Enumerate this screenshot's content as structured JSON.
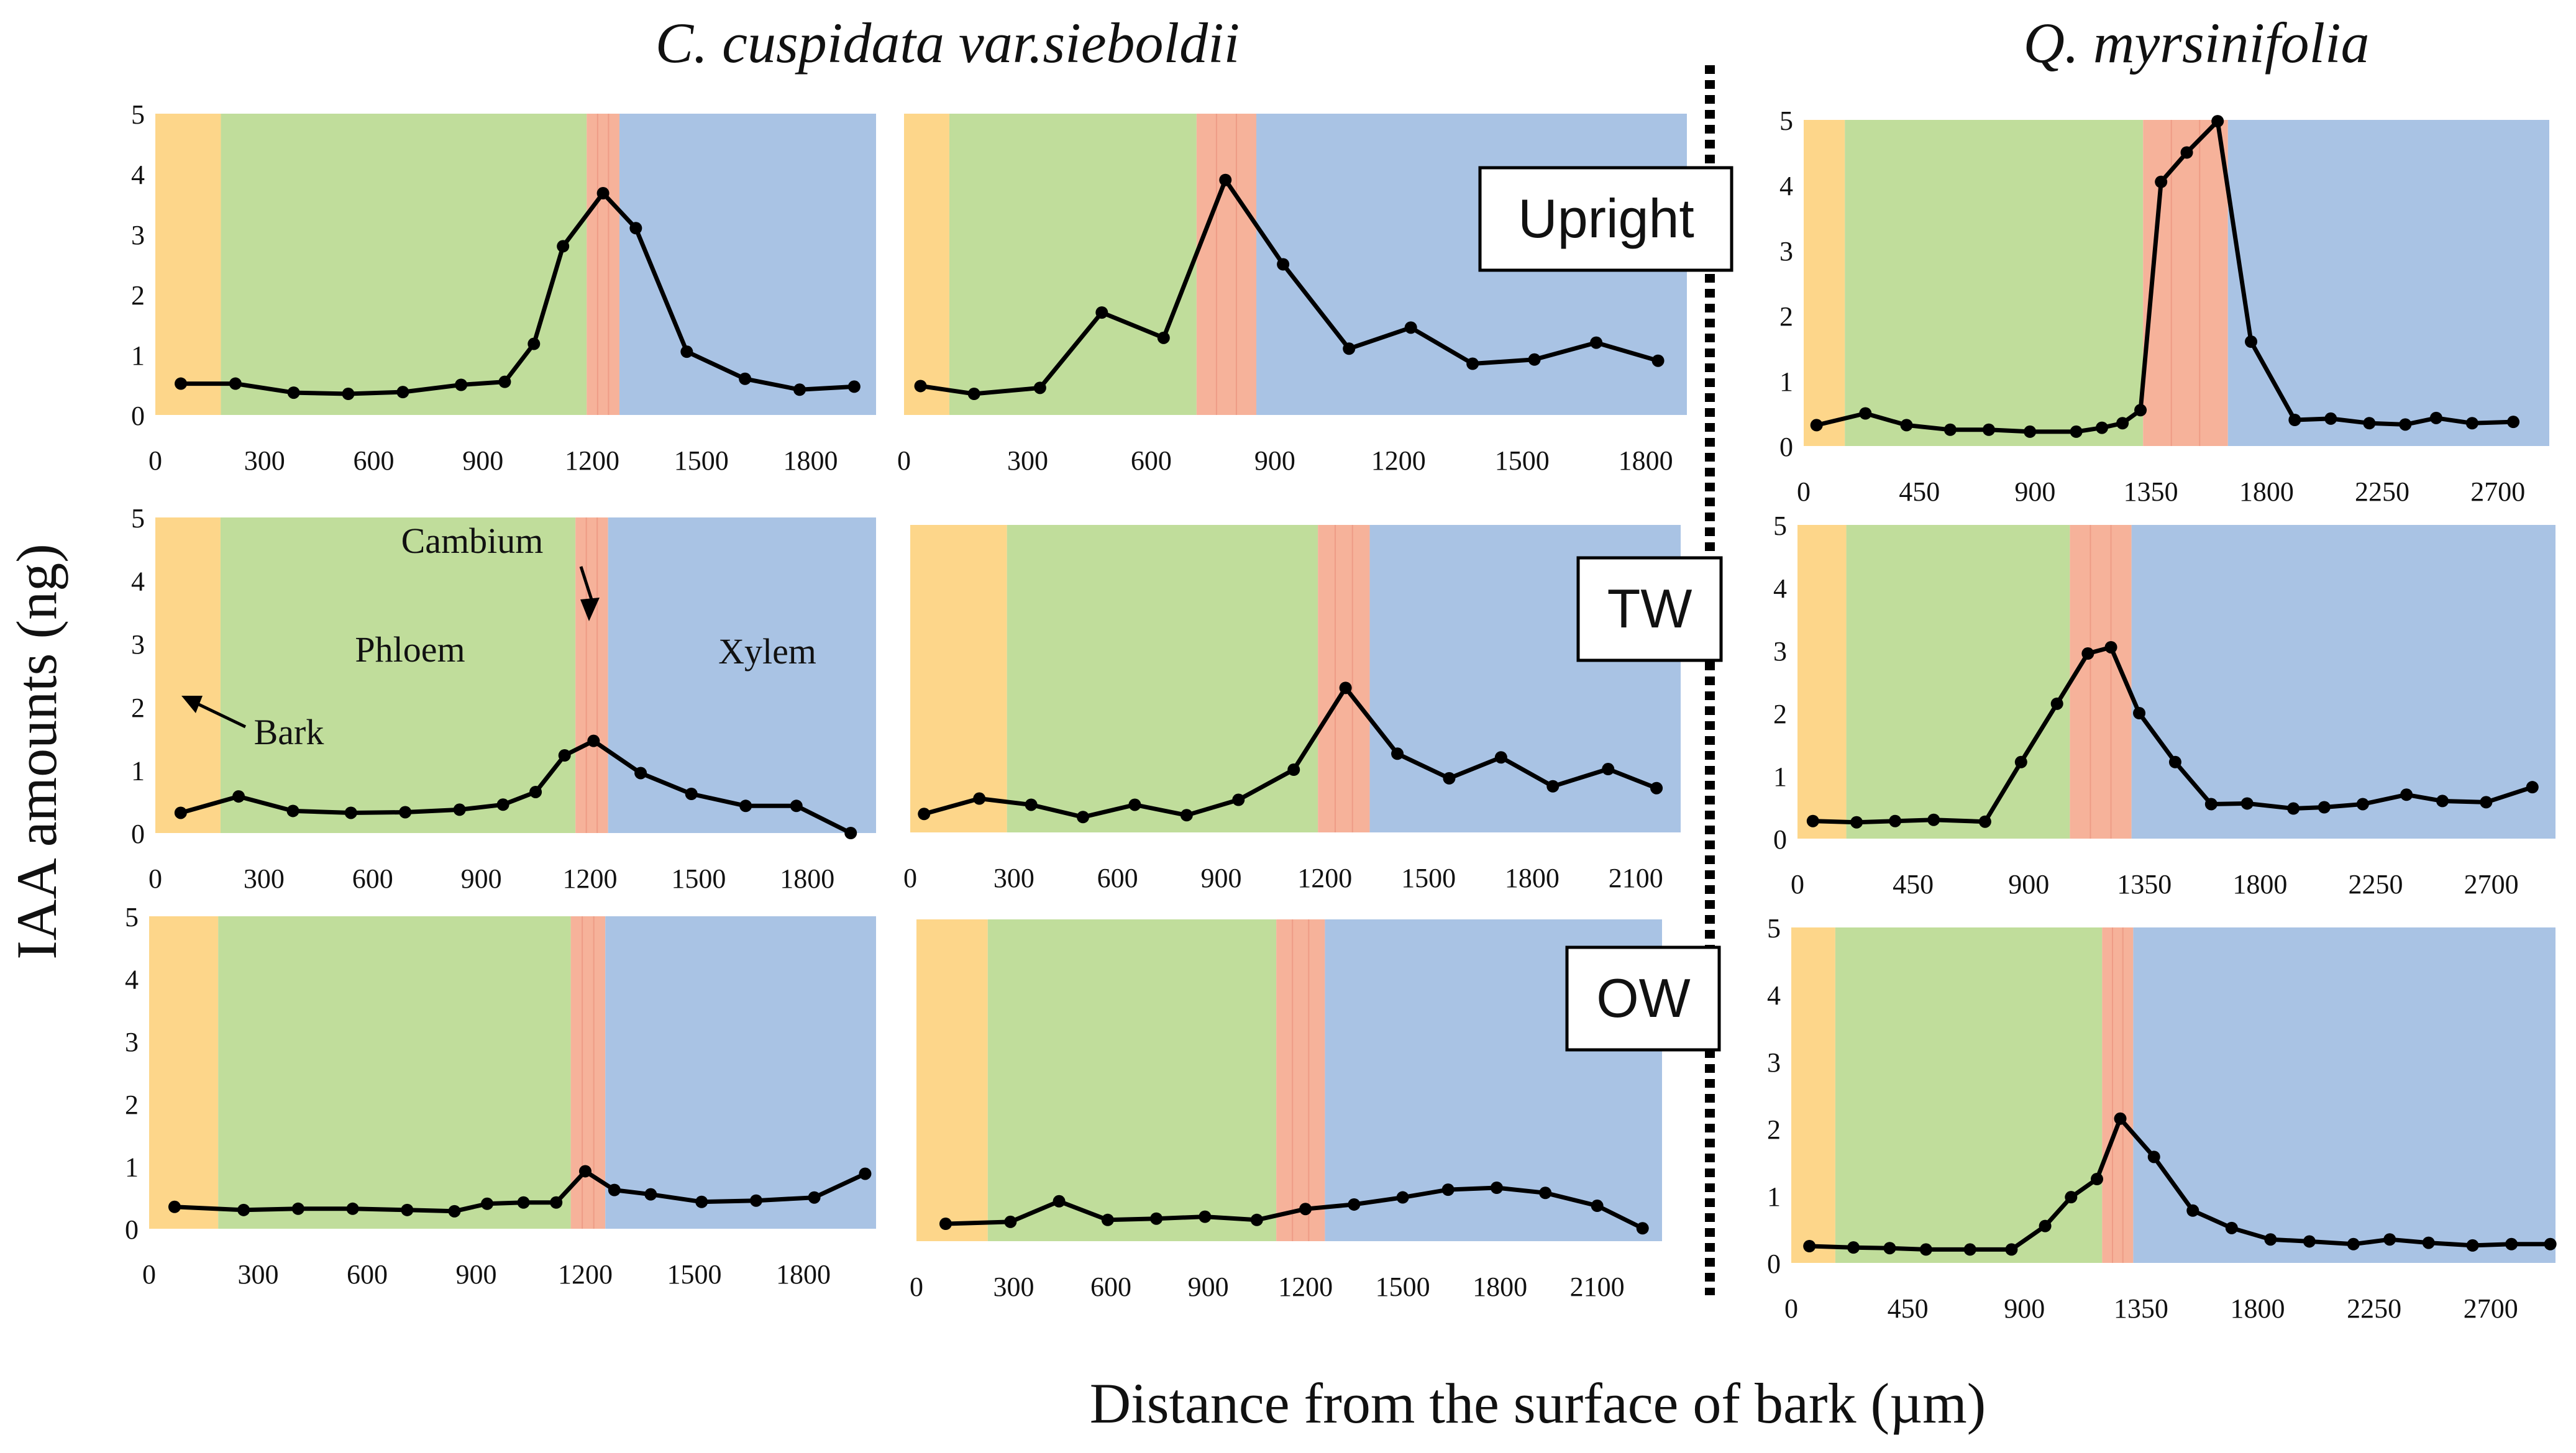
{
  "colors": {
    "bark": "#FDD68A",
    "phloem": "#C0DD9B",
    "cambium": "#F6B29A",
    "xylem": "#A9C3E4",
    "line": "#000000",
    "divider": "#000000"
  },
  "titles": {
    "species_left": "C. cuspidata var.sieboldii",
    "species_right": "Q. myrsinifolia",
    "ylabel": "IAA amounts (ng)",
    "xlabel": "Distance from the surface of bark (µm)"
  },
  "conditions": {
    "upright": "Upright",
    "tw": "TW",
    "ow": "OW"
  },
  "annotations": {
    "bark": "Bark",
    "phloem": "Phloem",
    "cambium": "Cambium",
    "xylem": "Xylem"
  },
  "chart_data": [
    {
      "type": "line",
      "species": "C. cuspidata var.sieboldii",
      "condition": "Upright",
      "xlim": [
        0,
        1980
      ],
      "ylim": [
        0,
        5
      ],
      "xticks": [
        0,
        300,
        600,
        900,
        1200,
        1500,
        1800
      ],
      "yticks": [
        0,
        1,
        2,
        3,
        4,
        5
      ],
      "tissues": {
        "bark": [
          0,
          180
        ],
        "phloem": [
          180,
          1185
        ],
        "cambium": [
          1185,
          1275
        ],
        "xylem": [
          1275,
          1980
        ]
      },
      "x": [
        70,
        220,
        380,
        530,
        680,
        840,
        960,
        1040,
        1120,
        1230,
        1320,
        1460,
        1620,
        1770,
        1920
      ],
      "y": [
        0.52,
        0.52,
        0.37,
        0.35,
        0.38,
        0.5,
        0.55,
        1.18,
        2.8,
        3.68,
        3.1,
        1.05,
        0.6,
        0.42,
        0.47
      ]
    },
    {
      "type": "line",
      "species": "C. cuspidata var.sieboldii",
      "condition": "Upright",
      "xlim": [
        0,
        1900
      ],
      "ylim": [
        0,
        5
      ],
      "xticks": [
        0,
        300,
        600,
        900,
        1200,
        1500,
        1800
      ],
      "yticks": [],
      "tissues": {
        "bark": [
          0,
          110
        ],
        "phloem": [
          110,
          710
        ],
        "cambium": [
          710,
          855
        ],
        "xylem": [
          855,
          1900
        ]
      },
      "x": [
        40,
        170,
        330,
        480,
        630,
        780,
        920,
        1080,
        1230,
        1380,
        1530,
        1680,
        1830
      ],
      "y": [
        0.48,
        0.35,
        0.45,
        1.7,
        1.28,
        3.9,
        2.5,
        1.1,
        1.45,
        0.85,
        0.92,
        1.2,
        0.9
      ]
    },
    {
      "type": "line",
      "species": "Q. myrsinifolia",
      "condition": "Upright",
      "xlim": [
        0,
        2900
      ],
      "ylim": [
        0,
        5
      ],
      "xticks": [
        0,
        450,
        900,
        1350,
        1800,
        2250,
        2700
      ],
      "yticks": [
        0,
        1,
        2,
        3,
        4,
        5
      ],
      "tissues": {
        "bark": [
          0,
          160
        ],
        "phloem": [
          160,
          1320
        ],
        "cambium": [
          1320,
          1650
        ],
        "xylem": [
          1650,
          2900
        ]
      },
      "x": [
        50,
        240,
        400,
        570,
        720,
        880,
        1060,
        1160,
        1240,
        1310,
        1390,
        1490,
        1610,
        1740,
        1910,
        2050,
        2200,
        2340,
        2460,
        2600,
        2760
      ],
      "y": [
        0.32,
        0.5,
        0.32,
        0.25,
        0.25,
        0.22,
        0.22,
        0.28,
        0.35,
        0.55,
        4.05,
        4.5,
        4.98,
        1.6,
        0.4,
        0.42,
        0.35,
        0.33,
        0.43,
        0.35,
        0.37
      ]
    },
    {
      "type": "line",
      "species": "C. cuspidata var.sieboldii",
      "condition": "TW",
      "xlim": [
        0,
        1990
      ],
      "ylim": [
        0,
        5
      ],
      "xticks": [
        0,
        300,
        600,
        900,
        1200,
        1500,
        1800
      ],
      "yticks": [
        0,
        1,
        2,
        3,
        4,
        5
      ],
      "tissues": {
        "bark": [
          0,
          180
        ],
        "phloem": [
          180,
          1160
        ],
        "cambium": [
          1160,
          1250
        ],
        "xylem": [
          1250,
          1990
        ]
      },
      "x": [
        70,
        230,
        380,
        540,
        690,
        840,
        960,
        1050,
        1130,
        1210,
        1340,
        1480,
        1630,
        1770,
        1920
      ],
      "y": [
        0.32,
        0.58,
        0.35,
        0.32,
        0.33,
        0.37,
        0.45,
        0.65,
        1.23,
        1.46,
        0.95,
        0.62,
        0.43,
        0.43,
        0.0
      ]
    },
    {
      "type": "line",
      "species": "C. cuspidata var.sieboldii",
      "condition": "TW",
      "xlim": [
        0,
        2230
      ],
      "ylim": [
        0,
        5
      ],
      "xticks": [
        0,
        300,
        600,
        900,
        1200,
        1500,
        1800,
        2100
      ],
      "yticks": [],
      "tissues": {
        "bark": [
          0,
          280
        ],
        "phloem": [
          280,
          1180
        ],
        "cambium": [
          1180,
          1330
        ],
        "xylem": [
          1330,
          2230
        ]
      },
      "x": [
        40,
        200,
        350,
        500,
        650,
        800,
        950,
        1110,
        1260,
        1410,
        1560,
        1710,
        1860,
        2020,
        2160
      ],
      "y": [
        0.3,
        0.55,
        0.45,
        0.25,
        0.45,
        0.28,
        0.53,
        1.02,
        2.35,
        1.28,
        0.88,
        1.22,
        0.75,
        1.03,
        0.72
      ]
    },
    {
      "type": "line",
      "species": "Q. myrsinifolia",
      "condition": "TW",
      "xlim": [
        0,
        2950
      ],
      "ylim": [
        0,
        5
      ],
      "xticks": [
        0,
        450,
        900,
        1350,
        1800,
        2250,
        2700
      ],
      "yticks": [
        0,
        1,
        2,
        3,
        4,
        5
      ],
      "tissues": {
        "bark": [
          0,
          190
        ],
        "phloem": [
          190,
          1060
        ],
        "cambium": [
          1060,
          1300
        ],
        "xylem": [
          1300,
          2950
        ]
      },
      "x": [
        60,
        230,
        380,
        530,
        730,
        870,
        1010,
        1130,
        1220,
        1330,
        1470,
        1610,
        1750,
        1930,
        2050,
        2200,
        2370,
        2510,
        2680,
        2860
      ],
      "y": [
        0.28,
        0.26,
        0.28,
        0.3,
        0.27,
        1.22,
        2.15,
        2.95,
        3.05,
        2.0,
        1.22,
        0.55,
        0.56,
        0.48,
        0.5,
        0.55,
        0.7,
        0.6,
        0.58,
        0.82
      ]
    },
    {
      "type": "line",
      "species": "C. cuspidata var.sieboldii",
      "condition": "OW",
      "xlim": [
        0,
        2000
      ],
      "ylim": [
        0,
        5
      ],
      "xticks": [
        0,
        300,
        600,
        900,
        1200,
        1500,
        1800
      ],
      "yticks": [
        0,
        1,
        2,
        3,
        4,
        5
      ],
      "tissues": {
        "bark": [
          0,
          190
        ],
        "phloem": [
          190,
          1160
        ],
        "cambium": [
          1160,
          1255
        ],
        "xylem": [
          1255,
          2000
        ]
      },
      "x": [
        70,
        260,
        410,
        560,
        710,
        840,
        930,
        1030,
        1120,
        1200,
        1280,
        1380,
        1520,
        1670,
        1830,
        1970
      ],
      "y": [
        0.35,
        0.3,
        0.32,
        0.32,
        0.3,
        0.28,
        0.4,
        0.42,
        0.42,
        0.92,
        0.62,
        0.55,
        0.43,
        0.45,
        0.5,
        0.88
      ]
    },
    {
      "type": "line",
      "species": "C. cuspidata var.sieboldii",
      "condition": "OW",
      "xlim": [
        0,
        2300
      ],
      "ylim": [
        0,
        5
      ],
      "xticks": [
        0,
        300,
        600,
        900,
        1200,
        1500,
        1800,
        2100
      ],
      "yticks": [],
      "tissues": {
        "bark": [
          0,
          220
        ],
        "phloem": [
          220,
          1110
        ],
        "cambium": [
          1110,
          1260
        ],
        "xylem": [
          1260,
          2300
        ]
      },
      "x": [
        90,
        290,
        440,
        590,
        740,
        890,
        1050,
        1200,
        1350,
        1500,
        1640,
        1790,
        1940,
        2100,
        2240
      ],
      "y": [
        0.27,
        0.3,
        0.62,
        0.33,
        0.35,
        0.38,
        0.33,
        0.5,
        0.57,
        0.68,
        0.8,
        0.83,
        0.75,
        0.55,
        0.2
      ]
    },
    {
      "type": "line",
      "species": "Q. myrsinifolia",
      "condition": "OW",
      "xlim": [
        0,
        2950
      ],
      "ylim": [
        0,
        5
      ],
      "xticks": [
        0,
        450,
        900,
        1350,
        1800,
        2250,
        2700
      ],
      "yticks": [
        0,
        1,
        2,
        3,
        4,
        5
      ],
      "tissues": {
        "bark": [
          0,
          170
        ],
        "phloem": [
          170,
          1200
        ],
        "cambium": [
          1200,
          1320
        ],
        "xylem": [
          1320,
          2950
        ]
      },
      "x": [
        70,
        240,
        380,
        520,
        690,
        850,
        980,
        1080,
        1180,
        1270,
        1400,
        1550,
        1700,
        1850,
        2000,
        2170,
        2310,
        2460,
        2630,
        2780,
        2930
      ],
      "y": [
        0.25,
        0.23,
        0.22,
        0.2,
        0.2,
        0.2,
        0.55,
        0.98,
        1.25,
        2.15,
        1.58,
        0.78,
        0.52,
        0.35,
        0.32,
        0.28,
        0.35,
        0.3,
        0.26,
        0.28,
        0.28
      ]
    }
  ]
}
